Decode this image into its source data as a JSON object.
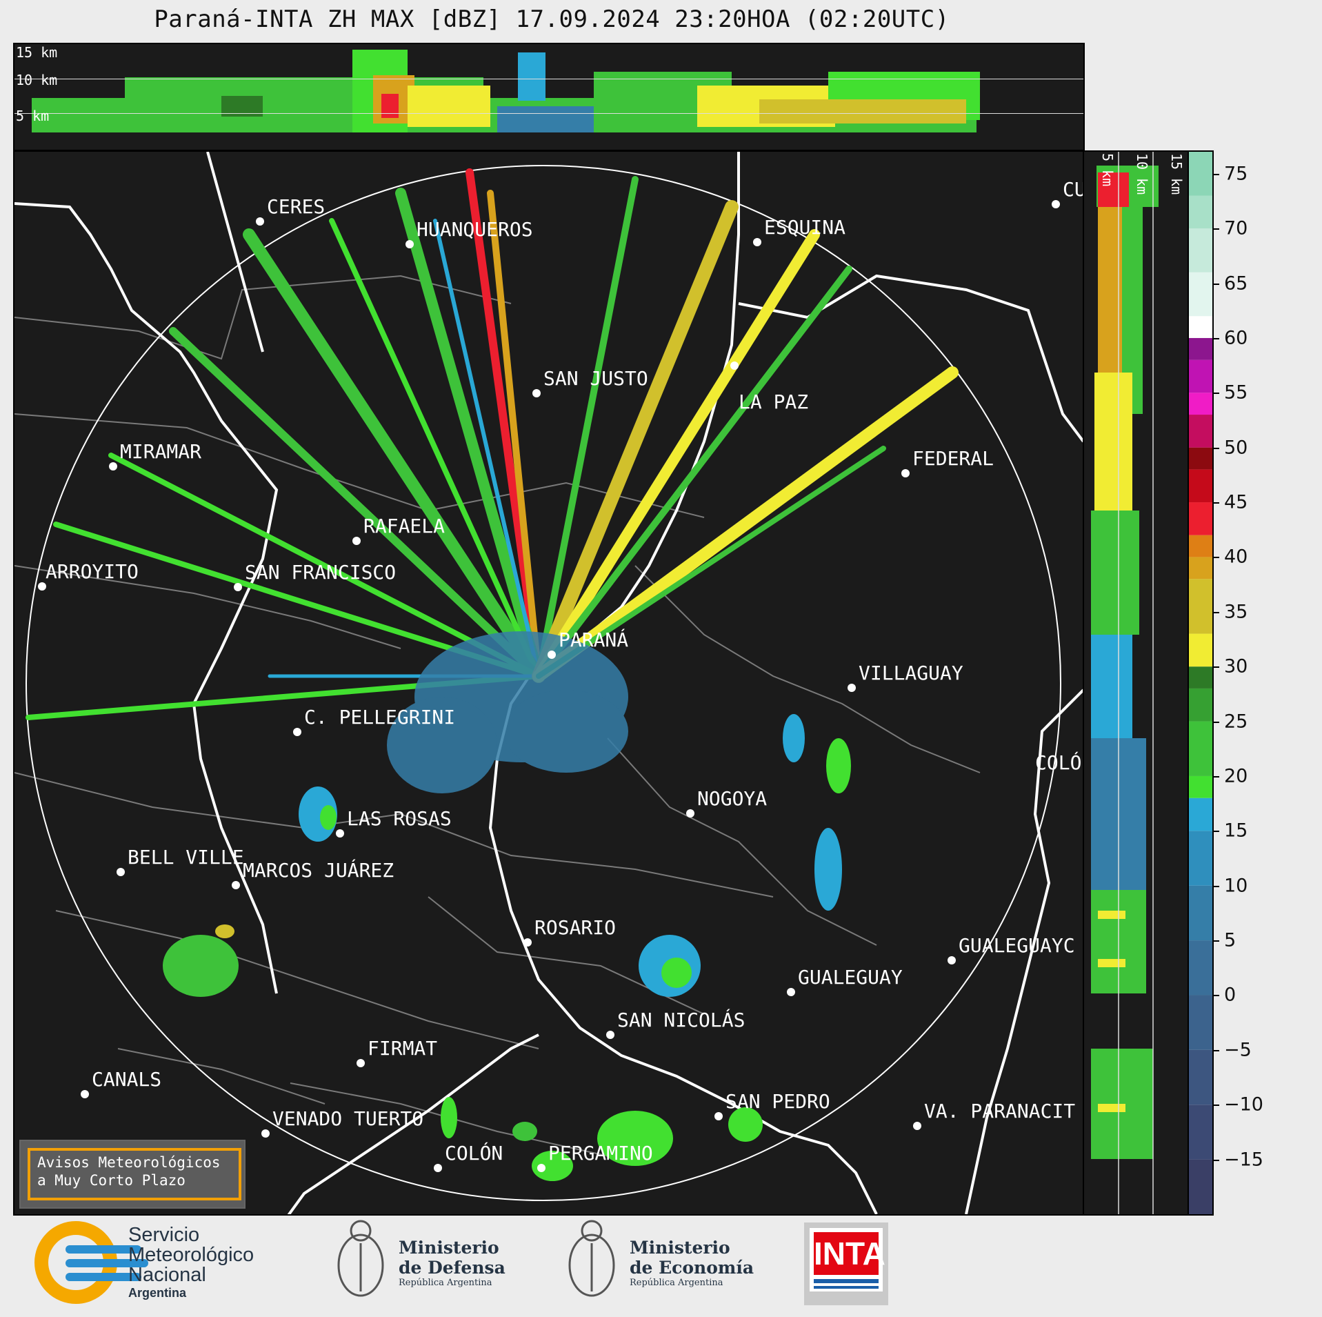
{
  "title": "Paraná-INTA ZH MAX [dBZ] 17.09.2024 23:20HOA (02:20UTC)",
  "top_panel": {
    "km_labels": [
      "15 km",
      "10 km",
      "5 km"
    ]
  },
  "side_panel": {
    "km_labels": [
      "5 km",
      "10 km",
      "15 km"
    ]
  },
  "colorbar": {
    "unit": "dBZ",
    "ticks": [
      "75",
      "70",
      "65",
      "60",
      "55",
      "50",
      "45",
      "40",
      "35",
      "30",
      "25",
      "20",
      "15",
      "10",
      "5",
      "0",
      "−5",
      "−10",
      "−15"
    ],
    "range": [
      -20,
      77
    ],
    "stops": [
      {
        "from": -20,
        "to": -15,
        "color": "#3a3f66"
      },
      {
        "from": -15,
        "to": -10,
        "color": "#3c4a74"
      },
      {
        "from": -10,
        "to": -5,
        "color": "#3d5680"
      },
      {
        "from": -5,
        "to": 0,
        "color": "#3c638d"
      },
      {
        "from": 0,
        "to": 5,
        "color": "#3a6f99"
      },
      {
        "from": 5,
        "to": 10,
        "color": "#357ea8"
      },
      {
        "from": 10,
        "to": 15,
        "color": "#2f8fbd"
      },
      {
        "from": 15,
        "to": 18,
        "color": "#2aa8d6"
      },
      {
        "from": 18,
        "to": 20,
        "color": "#42e030"
      },
      {
        "from": 20,
        "to": 25,
        "color": "#3ec23a"
      },
      {
        "from": 25,
        "to": 28,
        "color": "#36a032"
      },
      {
        "from": 28,
        "to": 30,
        "color": "#2d7a26"
      },
      {
        "from": 30,
        "to": 33,
        "color": "#f1ec33"
      },
      {
        "from": 33,
        "to": 38,
        "color": "#d1c02c"
      },
      {
        "from": 38,
        "to": 40,
        "color": "#d8a21d"
      },
      {
        "from": 40,
        "to": 42,
        "color": "#de7f15"
      },
      {
        "from": 42,
        "to": 45,
        "color": "#ec1f2f"
      },
      {
        "from": 45,
        "to": 48,
        "color": "#c50a1a"
      },
      {
        "from": 48,
        "to": 50,
        "color": "#8c0a10"
      },
      {
        "from": 50,
        "to": 53,
        "color": "#c40d5f"
      },
      {
        "from": 53,
        "to": 55,
        "color": "#f01cc6"
      },
      {
        "from": 55,
        "to": 58,
        "color": "#c013b3"
      },
      {
        "from": 58,
        "to": 60,
        "color": "#8c168e"
      },
      {
        "from": 60,
        "to": 62,
        "color": "#ffffff"
      },
      {
        "from": 62,
        "to": 66,
        "color": "#e2f5ee"
      },
      {
        "from": 66,
        "to": 70,
        "color": "#c6eadb"
      },
      {
        "from": 70,
        "to": 73,
        "color": "#a8e0c8"
      },
      {
        "from": 73,
        "to": 77,
        "color": "#8cd6b6"
      }
    ]
  },
  "cities": [
    {
      "name": "CERES"
    },
    {
      "name": "HUANQUEROS"
    },
    {
      "name": "ESQUINA"
    },
    {
      "name": "CU"
    },
    {
      "name": "SAN JUSTO"
    },
    {
      "name": "LA PAZ"
    },
    {
      "name": "MIRAMAR"
    },
    {
      "name": "FEDERAL"
    },
    {
      "name": "RAFAELA"
    },
    {
      "name": "ARROYITO"
    },
    {
      "name": "SAN FRANCISCO"
    },
    {
      "name": "PARANÁ"
    },
    {
      "name": "VILLAGUAY"
    },
    {
      "name": "C. PELLEGRINI"
    },
    {
      "name": "COLÓ"
    },
    {
      "name": "NOGOYA"
    },
    {
      "name": "LAS ROSAS"
    },
    {
      "name": "BELL VILLE"
    },
    {
      "name": "MARCOS JUÁREZ"
    },
    {
      "name": "ROSARIO"
    },
    {
      "name": "GUALEGUAYC"
    },
    {
      "name": "GUALEGUAY"
    },
    {
      "name": "SAN NICOLÁS"
    },
    {
      "name": "FIRMAT"
    },
    {
      "name": "CANALS"
    },
    {
      "name": "SAN PEDRO"
    },
    {
      "name": "VENADO TUERTO"
    },
    {
      "name": "VA. PARANACIT"
    },
    {
      "name": "COLÓN"
    },
    {
      "name": "PERGAMINO"
    }
  ],
  "warning": {
    "line1": "Avisos Meteorológicos",
    "line2": "a Muy Corto Plazo"
  },
  "logos": {
    "smn": {
      "line1": "Servicio",
      "line2": "Meteorológico",
      "line3": "Nacional",
      "line4": "Argentina"
    },
    "defensa": {
      "line1": "Ministerio",
      "line2": "de Defensa",
      "line3": "República Argentina"
    },
    "economia": {
      "line1": "Ministerio",
      "line2": "de Economía",
      "line3": "República Argentina"
    },
    "inta": "INTA"
  },
  "colors": {
    "panel_bg": "#1b1b1b",
    "range_ring": "#ffffff",
    "borders": "#7a7a7a",
    "provinces": "#ffffff"
  }
}
